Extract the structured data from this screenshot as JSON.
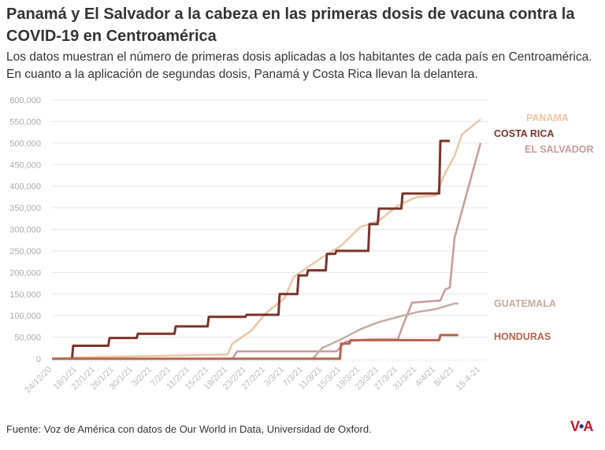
{
  "title": "Panamá y El Salvador a la cabeza en las primeras dosis de vacuna contra la COVID-19 en Centroamérica",
  "subtitle": "Los datos muestran el número de primeras dosis aplicadas a los habitantes de cada país en Centroamérica. En cuanto a la aplicación de segundas dosis, Panamá y Costa Rica llevan la delantera.",
  "source": "Fuente: Voz de América con datos de Our World in Data, Universidad de Oxford.",
  "logo": "VOA",
  "chart_data": {
    "type": "line",
    "ylim": [
      0,
      600000
    ],
    "yticks": [
      0,
      50000,
      100000,
      150000,
      200000,
      250000,
      300000,
      350000,
      400000,
      450000,
      500000,
      550000,
      600000
    ],
    "ytick_labels": [
      "0",
      "50,000",
      "100,000",
      "150,000",
      "200,000",
      "250,000",
      "300,000",
      "350,000",
      "400,000",
      "450,000",
      "500,000",
      "550,000",
      "600,000"
    ],
    "xtick_labels": [
      "24/12/20",
      "18/1/21",
      "22/1/21",
      "26/1/21",
      "30/1/21",
      "3/2/21",
      "7/2/21",
      "11/2/21",
      "15/2/21",
      "19/2/21",
      "23/2/21",
      "27/2/21",
      "3/3/21",
      "7/3/21",
      "11/3/21",
      "15/3/21",
      "19/3/21",
      "23/3/21",
      "27/3/21",
      "31/3/21",
      "4/4/21",
      "8/4/21",
      "15-4-21"
    ],
    "grid": "horizontal",
    "legend": "inline-right",
    "series": [
      {
        "name": "PANAMA",
        "color": "#ebc7a3",
        "step": false,
        "points": [
          [
            "24/12/20",
            0
          ],
          [
            "18/1/21",
            3000
          ],
          [
            "19/2/21",
            10000
          ],
          [
            "20/2/21",
            35000
          ],
          [
            "22/2/21",
            50000
          ],
          [
            "24/2/21",
            65000
          ],
          [
            "27/2/21",
            105000
          ],
          [
            "3/3/21",
            140000
          ],
          [
            "5/3/21",
            190000
          ],
          [
            "7/3/21",
            205000
          ],
          [
            "11/3/21",
            235000
          ],
          [
            "15/3/21",
            262000
          ],
          [
            "19/3/21",
            305000
          ],
          [
            "23/3/21",
            320000
          ],
          [
            "27/3/21",
            355000
          ],
          [
            "31/3/21",
            375000
          ],
          [
            "4/4/21",
            378000
          ],
          [
            "6/4/21",
            430000
          ],
          [
            "8/4/21",
            470000
          ],
          [
            "10/4/21",
            520000
          ],
          [
            "15-4-21",
            555000
          ]
        ]
      },
      {
        "name": "COSTA RICA",
        "color": "#7b3328",
        "step": true,
        "points": [
          [
            "24/12/20",
            0
          ],
          [
            "14/1/21",
            30000
          ],
          [
            "25/1/21",
            48000
          ],
          [
            "31/1/21",
            58000
          ],
          [
            "8/2/21",
            75000
          ],
          [
            "15/2/21",
            97000
          ],
          [
            "23/2/21",
            102000
          ],
          [
            "2/3/21",
            150000
          ],
          [
            "6/3/21",
            193000
          ],
          [
            "8/3/21",
            205000
          ],
          [
            "12/3/21",
            243000
          ],
          [
            "14/3/21",
            250000
          ],
          [
            "21/3/21",
            312000
          ],
          [
            "23/3/21",
            348000
          ],
          [
            "28/3/21",
            383000
          ],
          [
            "5/4/21",
            505000
          ],
          [
            "7/4/21",
            505000
          ]
        ]
      },
      {
        "name": "EL SALVADOR",
        "color": "#c89a9a",
        "step": false,
        "points": [
          [
            "24/12/20",
            0
          ],
          [
            "20/2/21",
            0
          ],
          [
            "21/2/21",
            17000
          ],
          [
            "14/3/21",
            17000
          ],
          [
            "16/3/21",
            40000
          ],
          [
            "21/3/21",
            45000
          ],
          [
            "27/3/21",
            45000
          ],
          [
            "28/3/21",
            75000
          ],
          [
            "30/3/21",
            130000
          ],
          [
            "5/4/21",
            135000
          ],
          [
            "6/4/21",
            160000
          ],
          [
            "7/4/21",
            165000
          ],
          [
            "8/4/21",
            280000
          ],
          [
            "15-4-21",
            500000
          ]
        ]
      },
      {
        "name": "GUATEMALA",
        "color": "#c4aba0",
        "step": false,
        "points": [
          [
            "24/12/20",
            0
          ],
          [
            "9/3/21",
            0
          ],
          [
            "11/3/21",
            25000
          ],
          [
            "15/3/21",
            45000
          ],
          [
            "19/3/21",
            68000
          ],
          [
            "23/3/21",
            85000
          ],
          [
            "27/3/21",
            97000
          ],
          [
            "31/3/21",
            108000
          ],
          [
            "4/4/21",
            115000
          ],
          [
            "8/4/21",
            128000
          ],
          [
            "9/4/21",
            128000
          ]
        ]
      },
      {
        "name": "HONDURAS",
        "color": "#b5634b",
        "step": true,
        "points": [
          [
            "24/12/20",
            0
          ],
          [
            "15/3/21",
            35000
          ],
          [
            "17/3/21",
            43000
          ],
          [
            "1/4/21",
            43000
          ],
          [
            "5/4/21",
            55000
          ],
          [
            "9/4/21",
            55000
          ]
        ]
      }
    ]
  }
}
